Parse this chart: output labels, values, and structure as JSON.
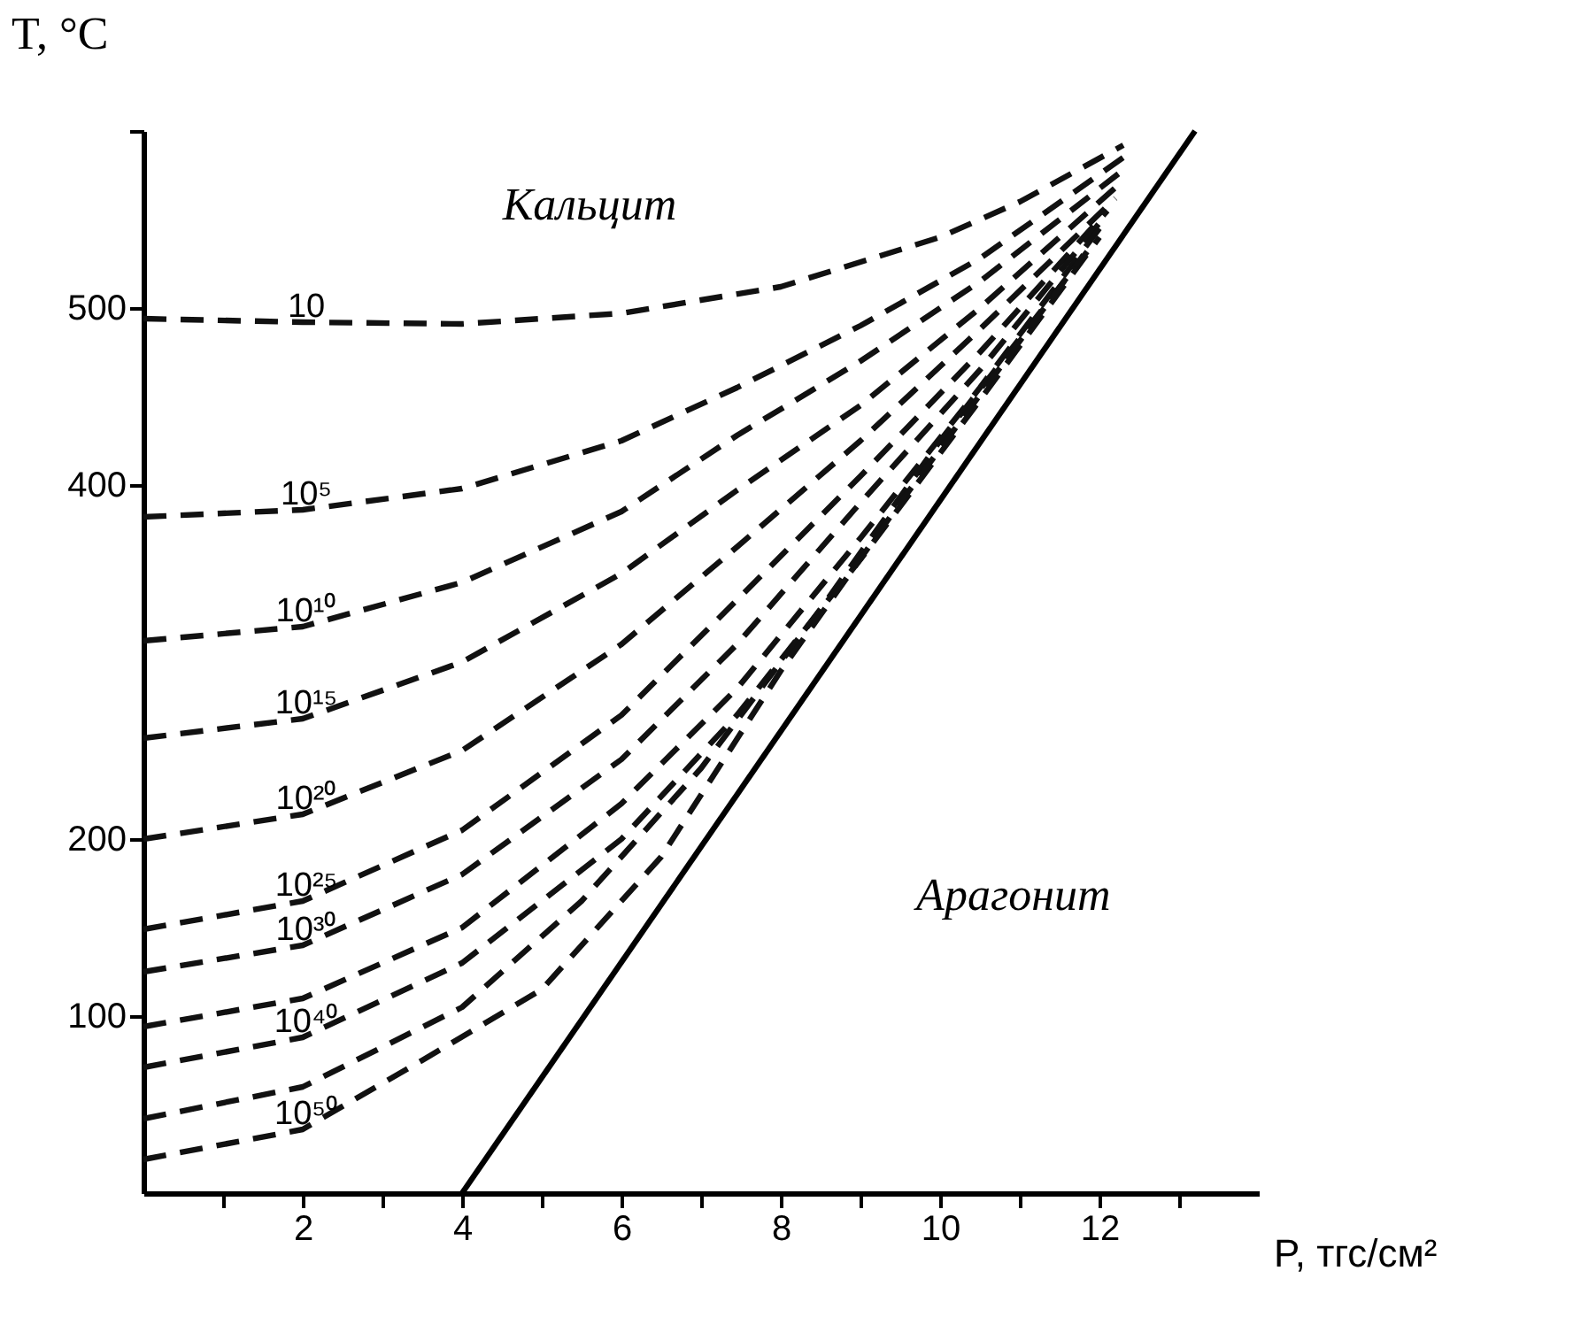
{
  "chart_data": {
    "type": "line",
    "xlabel": "P, тгс/см²",
    "ylabel": "T, °C",
    "xlim": [
      0,
      14
    ],
    "ylim": [
      0,
      600
    ],
    "xticks": [
      {
        "value": 1,
        "label": null
      },
      2,
      {
        "value": 3,
        "label": null
      },
      4,
      {
        "value": 5,
        "label": null
      },
      6,
      {
        "value": 7,
        "label": null
      },
      8,
      {
        "value": 9,
        "label": null
      },
      10,
      {
        "value": 11,
        "label": null
      },
      12,
      {
        "value": 13,
        "label": null
      }
    ],
    "yticks": [
      100,
      200,
      400,
      500,
      {
        "value": 600,
        "label": null
      }
    ],
    "grid": false,
    "legend": false,
    "line_style": "dashed",
    "annotations": [
      "Кальцит",
      "Арагонит"
    ],
    "series": [
      {
        "name": "10",
        "color": "#111111",
        "x": [
          0,
          2,
          4,
          6,
          8,
          10,
          11,
          12.3
        ],
        "values": [
          494,
          492,
          491,
          497,
          512,
          540,
          560,
          592
        ]
      },
      {
        "name": "10⁵",
        "color": "#111111",
        "x": [
          0,
          2,
          4,
          6,
          7.45,
          9,
          10.5,
          12.3
        ],
        "values": [
          382,
          386,
          398,
          425,
          455,
          490,
          528,
          585
        ]
      },
      {
        "name": "10¹⁰",
        "color": "#111111",
        "x": [
          0,
          2,
          4,
          6,
          7.45,
          9,
          10.5,
          12.3
        ],
        "values": [
          312,
          320,
          345,
          385,
          428,
          470,
          515,
          578
        ]
      },
      {
        "name": "10¹⁵",
        "color": "#111111",
        "x": [
          0,
          2,
          4,
          6,
          7.45,
          9,
          10.5,
          12.2
        ],
        "values": [
          257,
          268,
          300,
          350,
          397,
          445,
          500,
          568
        ]
      },
      {
        "name": "10²⁰",
        "color": "#111111",
        "x": [
          0,
          2,
          4,
          6,
          7.45,
          9,
          10.5,
          12.2
        ],
        "values": [
          200,
          214,
          250,
          310,
          365,
          425,
          488,
          562
        ]
      },
      {
        "name": "10²⁵",
        "color": "#111111",
        "x": [
          0,
          2,
          4,
          6,
          7.45,
          9,
          10.5,
          12.1
        ],
        "values": [
          149,
          165,
          205,
          270,
          335,
          405,
          475,
          555
        ]
      },
      {
        "name": "10³⁰",
        "color": "#111111",
        "x": [
          0,
          2,
          4,
          6,
          7.45,
          9,
          10.5,
          12
        ],
        "values": [
          125,
          140,
          180,
          245,
          310,
          390,
          465,
          548
        ]
      },
      {
        "color": "#111111",
        "x": [
          0,
          2,
          4,
          6,
          7.45,
          9,
          10.5,
          12
        ],
        "values": [
          94,
          110,
          150,
          220,
          285,
          370,
          455,
          545
        ]
      },
      {
        "name": "10⁴⁰",
        "color": "#111111",
        "x": [
          0,
          2,
          4,
          6,
          7.45,
          9,
          10.5,
          12
        ],
        "values": [
          71,
          88,
          130,
          200,
          270,
          358,
          448,
          540
        ]
      },
      {
        "color": "#111111",
        "x": [
          0,
          2,
          4,
          5.5,
          7,
          8.5,
          10,
          11.9
        ],
        "values": [
          42,
          60,
          105,
          165,
          240,
          330,
          425,
          535
        ]
      },
      {
        "name": "10⁵⁰",
        "color": "#111111",
        "x": [
          0,
          2,
          3.5,
          5,
          6.5,
          8,
          9.5,
          11.8
        ],
        "values": [
          19,
          36,
          75,
          115,
          190,
          295,
          390,
          530
        ]
      },
      {
        "color": "#000000",
        "line_style": "solid",
        "x": [
          4,
          13.2
        ],
        "values": [
          0,
          600
        ]
      }
    ]
  }
}
